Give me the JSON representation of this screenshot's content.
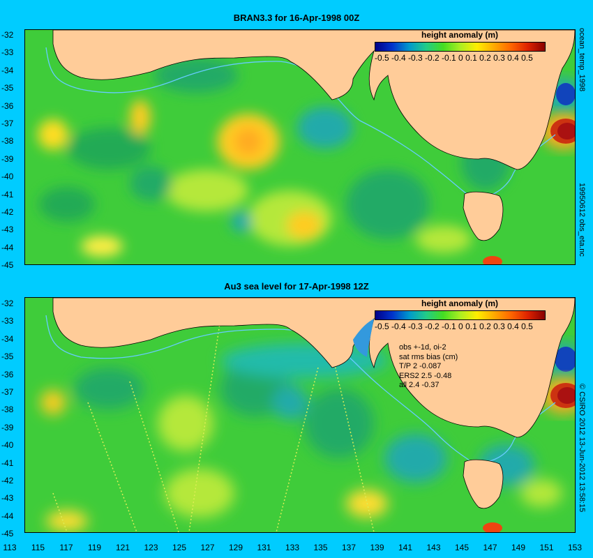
{
  "top_panel": {
    "title": "BRAN3.3 for 16-Apr-1998 00Z",
    "colorbar_title": "height anomaly (m)",
    "right_label": "19950612 obs_eta.nc",
    "right_label_top": "ocean_temp_1998"
  },
  "bottom_panel": {
    "title": "Au3 sea level  for 17-Apr-1998 12Z",
    "colorbar_title": "height anomaly (m)",
    "right_label": "© CSIRO 2012  13-Jun-2012 13:58:15",
    "stats": [
      "obs +-1d, oi-2",
      "sat rms bias (cm)",
      "T/P  2 -0.087",
      "ERS2 2.5 -0.48",
      "all 2.4 -0.37"
    ]
  },
  "colorbar_ticks": "-0.5 -0.4 -0.3 -0.2 -0.1   0   0.1  0.2  0.3  0.4  0.5",
  "lat_ticks": [
    "-32",
    "-33",
    "-34",
    "-35",
    "-36",
    "-37",
    "-38",
    "-39",
    "-40",
    "-41",
    "-42",
    "-43",
    "-44",
    "-45"
  ],
  "lon_ticks": [
    "113",
    "115",
    "117",
    "119",
    "121",
    "123",
    "125",
    "127",
    "129",
    "131",
    "133",
    "135",
    "137",
    "139",
    "141",
    "143",
    "145",
    "147",
    "149",
    "151",
    "153"
  ],
  "colors": {
    "background": "#00ccff",
    "land": "#ffcc99",
    "ocean_base": "#33cc33",
    "coast_line": "#66ccff"
  }
}
